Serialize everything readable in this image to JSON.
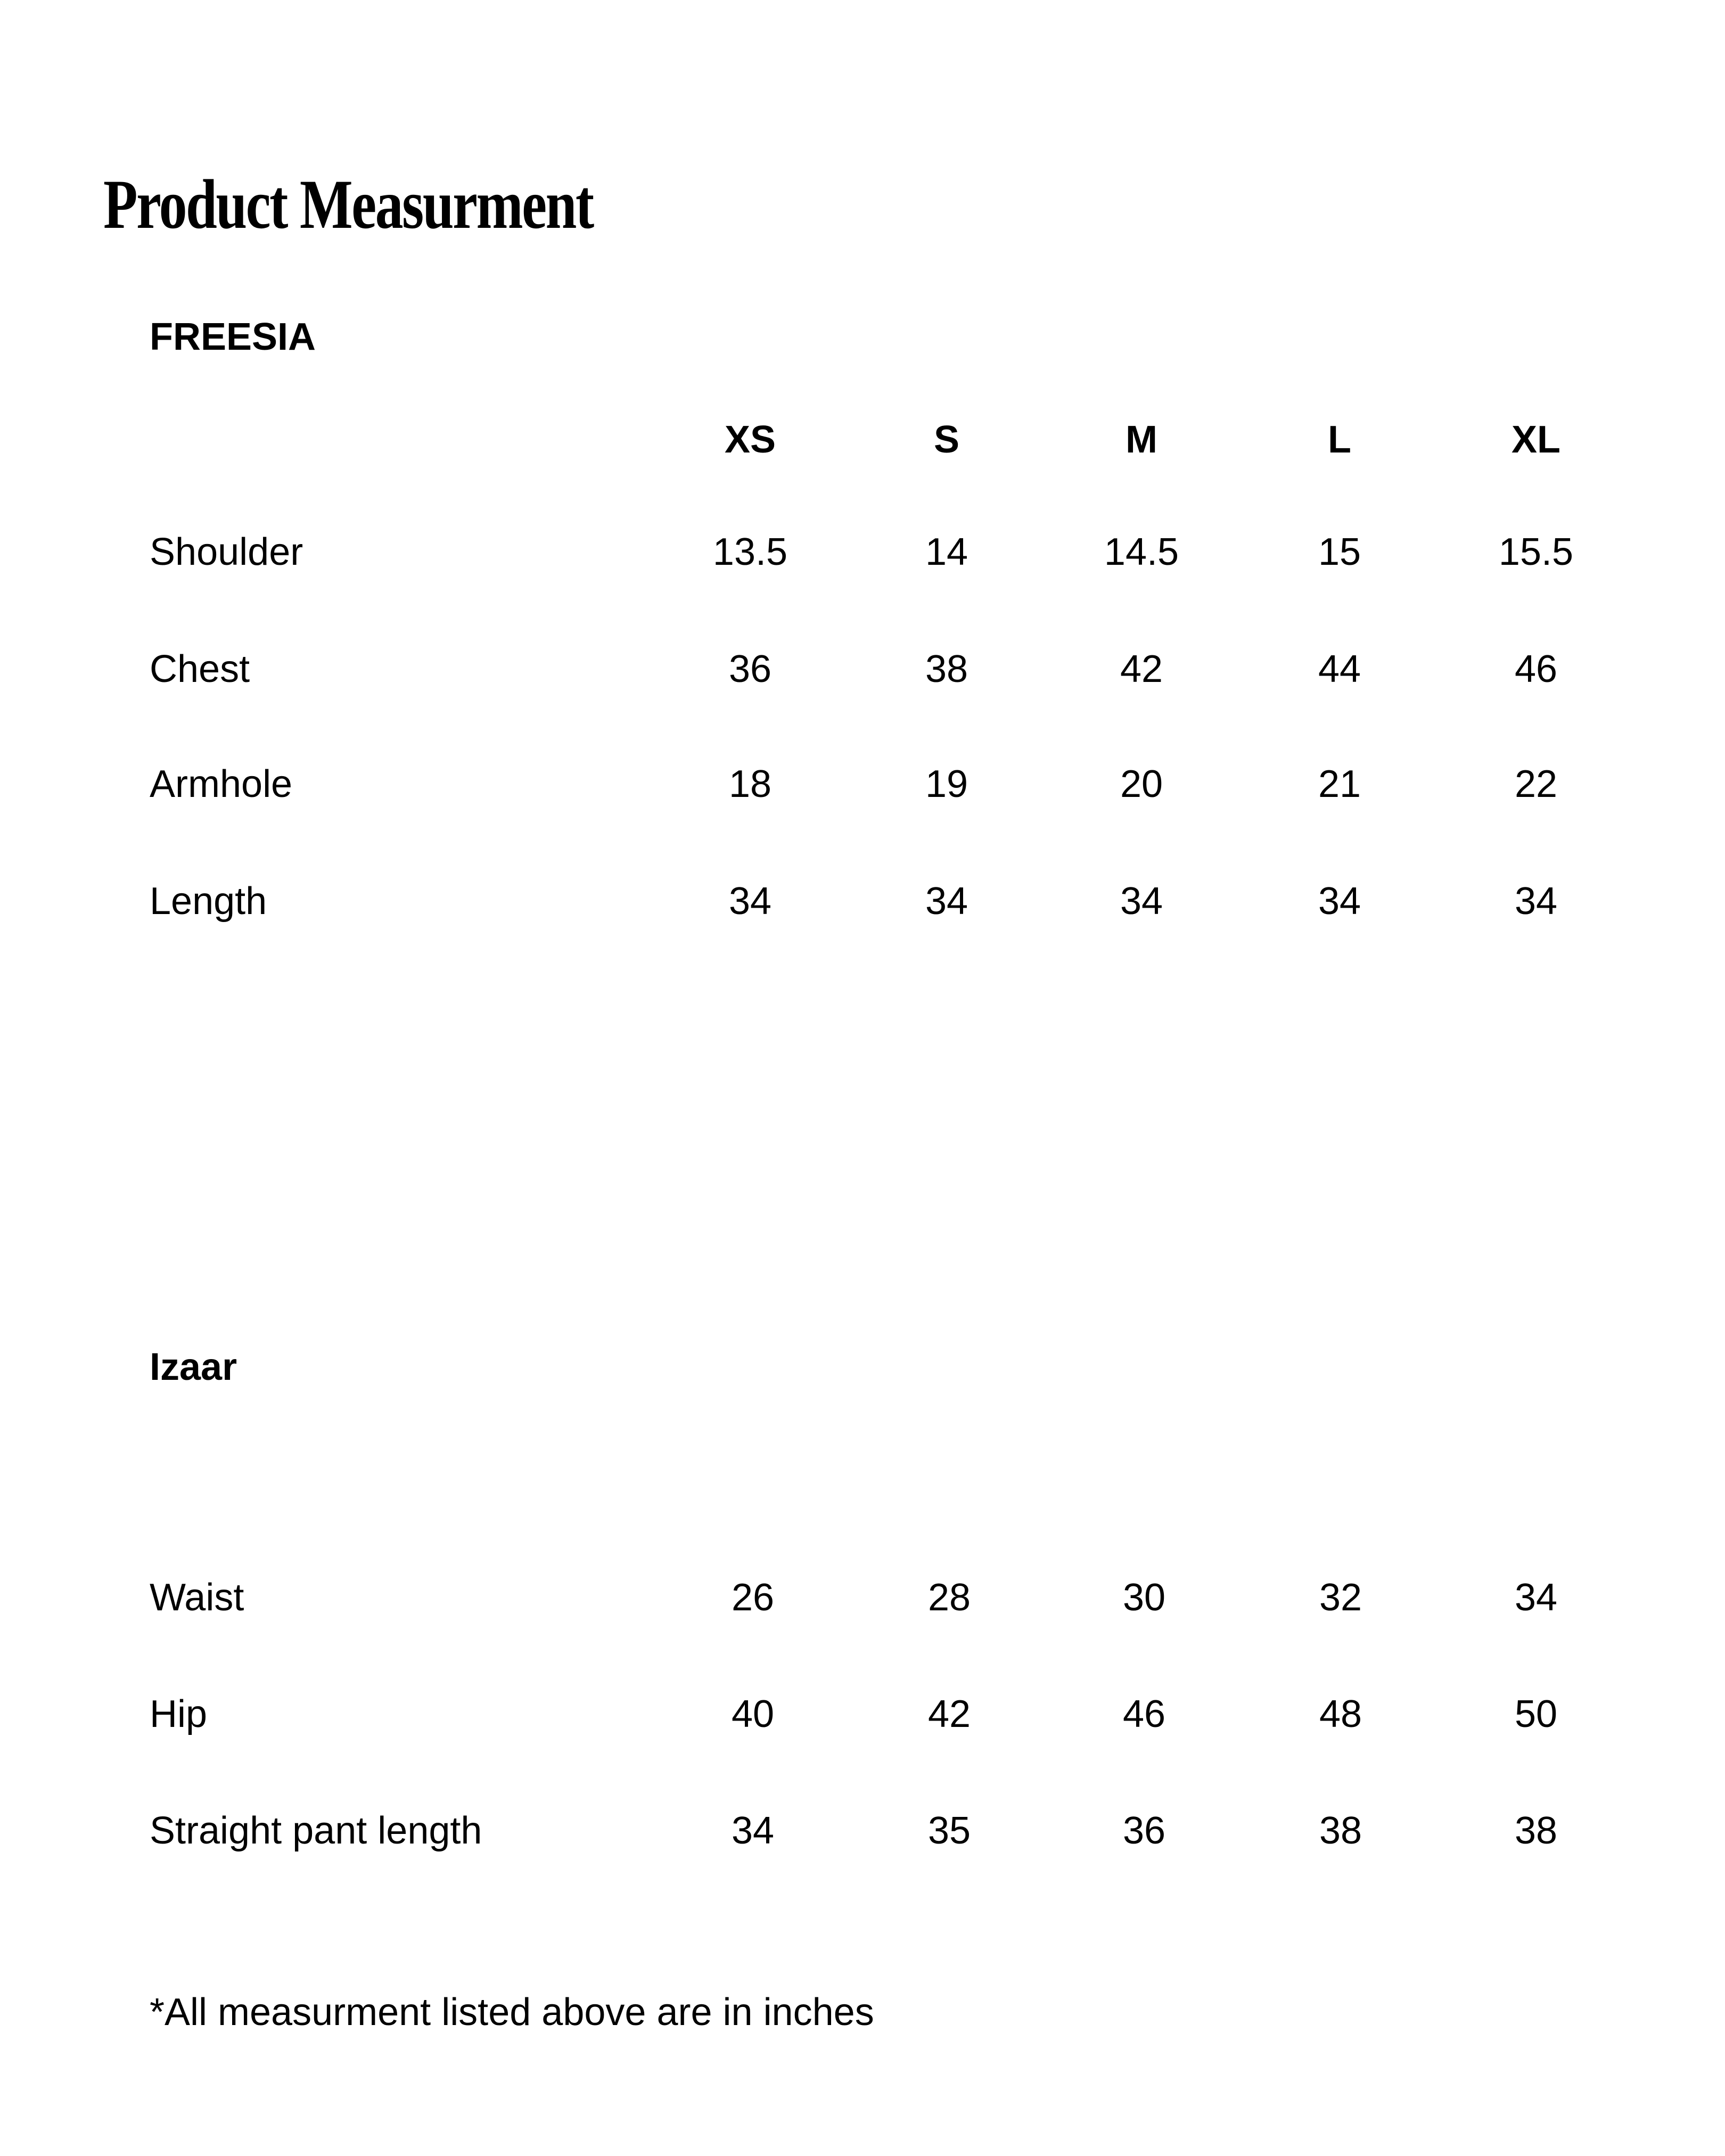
{
  "title": "Product Measurment",
  "freesia": {
    "heading": "FREESIA",
    "sizes": [
      "XS",
      "S",
      "M",
      "L",
      "XL"
    ],
    "rows": [
      {
        "label": "Shoulder",
        "values": [
          "13.5",
          "14",
          "14.5",
          "15",
          "15.5"
        ]
      },
      {
        "label": "Chest",
        "values": [
          "36",
          "38",
          "42",
          "44",
          "46"
        ]
      },
      {
        "label": "Armhole",
        "values": [
          "18",
          "19",
          "20",
          "21",
          "22"
        ]
      },
      {
        "label": "Length",
        "values": [
          "34",
          "34",
          "34",
          "34",
          "34"
        ]
      }
    ]
  },
  "izaar": {
    "heading": "Izaar",
    "rows": [
      {
        "label": "Waist",
        "values": [
          "26",
          "28",
          "30",
          "32",
          "34"
        ]
      },
      {
        "label": "Hip",
        "values": [
          "40",
          "42",
          "46",
          "48",
          "50"
        ]
      },
      {
        "label": "Straight pant length",
        "values": [
          "34",
          "35",
          "36",
          "38",
          "38"
        ]
      }
    ]
  },
  "footnote": "*All measurment listed above are in inches"
}
